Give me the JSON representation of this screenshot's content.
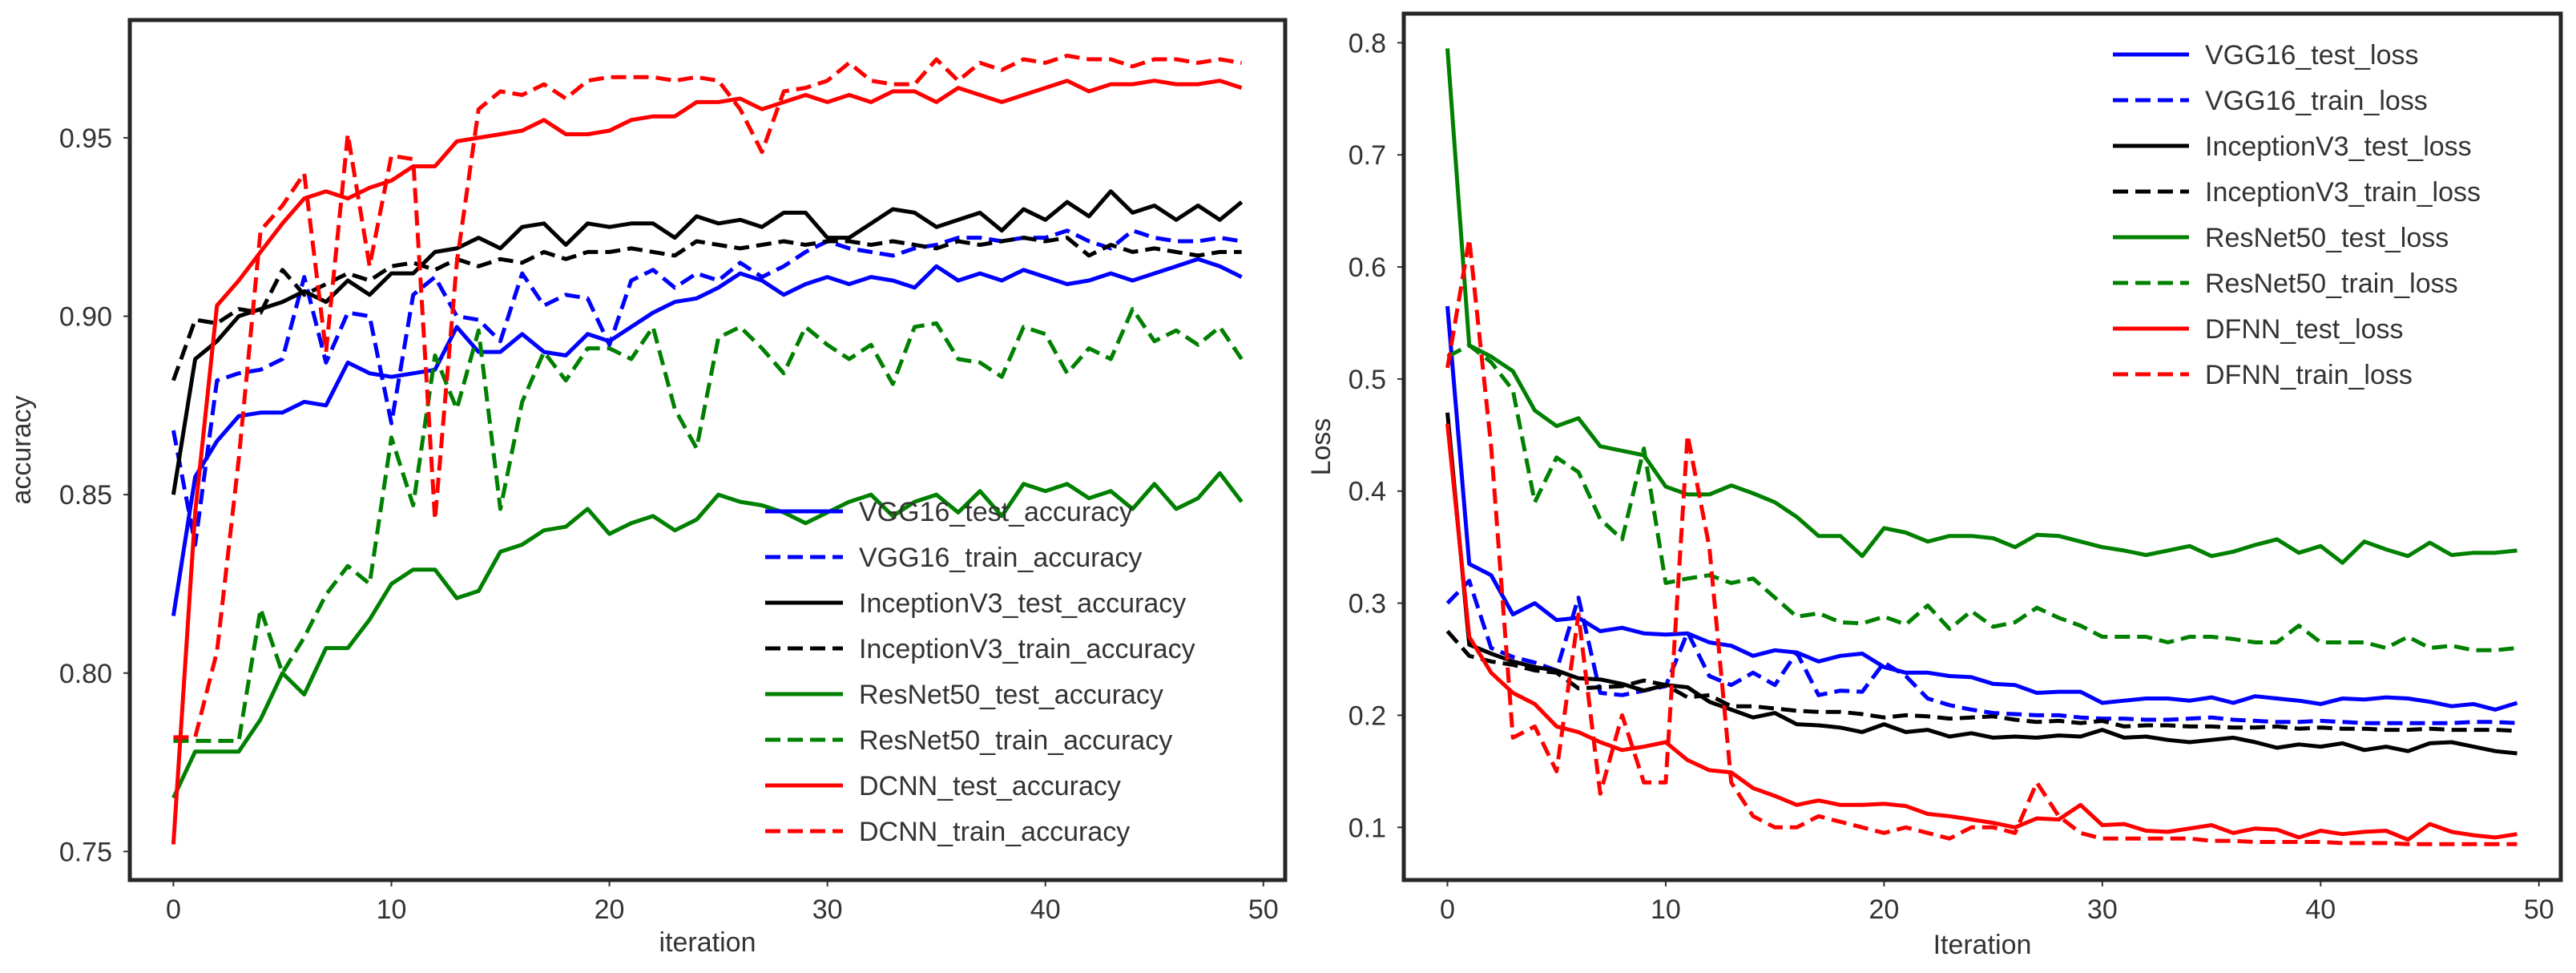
{
  "chart_data": [
    {
      "type": "line",
      "xlabel": "iteration",
      "ylabel": "accuracy",
      "xlim": [
        -2,
        51
      ],
      "ylim": [
        0.742,
        0.983
      ],
      "xticks": [
        0,
        10,
        20,
        30,
        40,
        50
      ],
      "yticks": [
        0.75,
        0.8,
        0.85,
        0.9,
        0.95
      ],
      "ytick_labels": [
        "0.75",
        "0.80",
        "0.85",
        "0.90",
        "0.95"
      ],
      "legend_position": "lower-right",
      "series": [
        {
          "name": "VGG16_test_accuracy",
          "color": "#0000ff",
          "style": "solid",
          "values": [
            0.816,
            0.855,
            0.865,
            0.872,
            0.873,
            0.873,
            0.876,
            0.875,
            0.887,
            0.884,
            0.883,
            0.884,
            0.885,
            0.897,
            0.89,
            0.89,
            0.895,
            0.89,
            0.889,
            0.895,
            0.893,
            0.897,
            0.901,
            0.904,
            0.905,
            0.908,
            0.912,
            0.91,
            0.906,
            0.909,
            0.911,
            0.909,
            0.911,
            0.91,
            0.908,
            0.914,
            0.91,
            0.912,
            0.91,
            0.913,
            0.911,
            0.909,
            0.91,
            0.912,
            0.91,
            0.912,
            0.914,
            0.916,
            0.914,
            0.911
          ]
        },
        {
          "name": "VGG16_train_accuracy",
          "color": "#0000ff",
          "style": "dashed",
          "values": [
            0.868,
            0.836,
            0.882,
            0.884,
            0.885,
            0.888,
            0.911,
            0.887,
            0.901,
            0.9,
            0.87,
            0.906,
            0.911,
            0.9,
            0.899,
            0.893,
            0.912,
            0.903,
            0.906,
            0.905,
            0.892,
            0.91,
            0.913,
            0.908,
            0.912,
            0.91,
            0.915,
            0.911,
            0.914,
            0.918,
            0.921,
            0.919,
            0.918,
            0.917,
            0.919,
            0.92,
            0.922,
            0.922,
            0.921,
            0.922,
            0.922,
            0.924,
            0.921,
            0.919,
            0.924,
            0.922,
            0.921,
            0.921,
            0.922,
            0.921
          ]
        },
        {
          "name": "InceptionV3_test_accuracy",
          "color": "#000000",
          "style": "solid",
          "values": [
            0.85,
            0.888,
            0.893,
            0.9,
            0.902,
            0.904,
            0.907,
            0.904,
            0.91,
            0.906,
            0.912,
            0.912,
            0.918,
            0.919,
            0.922,
            0.919,
            0.925,
            0.926,
            0.92,
            0.926,
            0.925,
            0.926,
            0.926,
            0.922,
            0.928,
            0.926,
            0.927,
            0.925,
            0.929,
            0.929,
            0.922,
            0.922,
            0.926,
            0.93,
            0.929,
            0.925,
            0.927,
            0.929,
            0.924,
            0.93,
            0.927,
            0.932,
            0.928,
            0.935,
            0.929,
            0.931,
            0.927,
            0.931,
            0.927,
            0.932
          ]
        },
        {
          "name": "InceptionV3_train_accuracy",
          "color": "#000000",
          "style": "dashed",
          "values": [
            0.882,
            0.899,
            0.898,
            0.902,
            0.901,
            0.913,
            0.906,
            0.909,
            0.912,
            0.91,
            0.914,
            0.915,
            0.913,
            0.916,
            0.914,
            0.916,
            0.915,
            0.918,
            0.916,
            0.918,
            0.918,
            0.919,
            0.918,
            0.917,
            0.921,
            0.92,
            0.919,
            0.92,
            0.921,
            0.92,
            0.921,
            0.921,
            0.92,
            0.921,
            0.92,
            0.919,
            0.921,
            0.92,
            0.921,
            0.922,
            0.921,
            0.922,
            0.917,
            0.92,
            0.918,
            0.919,
            0.918,
            0.917,
            0.918,
            0.918
          ]
        },
        {
          "name": "ResNet50_test_accuracy",
          "color": "#008000",
          "style": "solid",
          "values": [
            0.765,
            0.778,
            0.778,
            0.778,
            0.787,
            0.8,
            0.794,
            0.807,
            0.807,
            0.815,
            0.825,
            0.829,
            0.829,
            0.821,
            0.823,
            0.834,
            0.836,
            0.84,
            0.841,
            0.846,
            0.839,
            0.842,
            0.844,
            0.84,
            0.843,
            0.85,
            0.848,
            0.847,
            0.845,
            0.842,
            0.845,
            0.848,
            0.85,
            0.844,
            0.848,
            0.85,
            0.845,
            0.851,
            0.844,
            0.853,
            0.851,
            0.853,
            0.849,
            0.851,
            0.846,
            0.853,
            0.846,
            0.849,
            0.856,
            0.848
          ]
        },
        {
          "name": "ResNet50_train_accuracy",
          "color": "#008000",
          "style": "dashed",
          "values": [
            0.781,
            0.781,
            0.781,
            0.781,
            0.818,
            0.8,
            0.81,
            0.822,
            0.83,
            0.825,
            0.866,
            0.847,
            0.889,
            0.874,
            0.896,
            0.846,
            0.876,
            0.89,
            0.882,
            0.891,
            0.891,
            0.888,
            0.897,
            0.874,
            0.863,
            0.894,
            0.897,
            0.891,
            0.884,
            0.897,
            0.892,
            0.888,
            0.892,
            0.881,
            0.897,
            0.898,
            0.888,
            0.887,
            0.883,
            0.897,
            0.895,
            0.884,
            0.891,
            0.888,
            0.902,
            0.893,
            0.896,
            0.892,
            0.897,
            0.888
          ]
        },
        {
          "name": "DCNN_test_accuracy",
          "color": "#ff0000",
          "style": "solid",
          "values": [
            0.752,
            0.845,
            0.903,
            0.91,
            0.918,
            0.926,
            0.933,
            0.935,
            0.933,
            0.936,
            0.938,
            0.942,
            0.942,
            0.949,
            0.95,
            0.951,
            0.952,
            0.955,
            0.951,
            0.951,
            0.952,
            0.955,
            0.956,
            0.956,
            0.96,
            0.96,
            0.961,
            0.958,
            0.96,
            0.962,
            0.96,
            0.962,
            0.96,
            0.963,
            0.963,
            0.96,
            0.964,
            0.962,
            0.96,
            0.962,
            0.964,
            0.966,
            0.963,
            0.965,
            0.965,
            0.966,
            0.965,
            0.965,
            0.966,
            0.964
          ]
        },
        {
          "name": "DCNN_train_accuracy",
          "color": "#ff0000",
          "style": "dashed",
          "values": [
            0.782,
            0.782,
            0.806,
            0.86,
            0.924,
            0.931,
            0.94,
            0.89,
            0.951,
            0.914,
            0.945,
            0.944,
            0.843,
            0.915,
            0.958,
            0.963,
            0.962,
            0.965,
            0.961,
            0.966,
            0.967,
            0.967,
            0.967,
            0.966,
            0.967,
            0.966,
            0.958,
            0.946,
            0.963,
            0.964,
            0.966,
            0.971,
            0.966,
            0.965,
            0.965,
            0.972,
            0.966,
            0.971,
            0.969,
            0.972,
            0.971,
            0.973,
            0.972,
            0.972,
            0.97,
            0.972,
            0.972,
            0.971,
            0.972,
            0.971
          ]
        }
      ]
    },
    {
      "type": "line",
      "xlabel": "Iteration",
      "ylabel": "Loss",
      "xlim": [
        -2,
        51
      ],
      "ylim": [
        0.053,
        0.826
      ],
      "xticks": [
        0,
        10,
        20,
        30,
        40,
        50
      ],
      "yticks": [
        0.1,
        0.2,
        0.3,
        0.4,
        0.5,
        0.6,
        0.7,
        0.8
      ],
      "ytick_labels": [
        "0.1",
        "0.2",
        "0.3",
        "0.4",
        "0.5",
        "0.6",
        "0.7",
        "0.8"
      ],
      "legend_position": "upper-right",
      "series": [
        {
          "name": "VGG16_test_loss",
          "color": "#0000ff",
          "style": "solid",
          "values": [
            0.565,
            0.335,
            0.325,
            0.29,
            0.3,
            0.285,
            0.287,
            0.275,
            0.278,
            0.273,
            0.272,
            0.273,
            0.265,
            0.262,
            0.253,
            0.258,
            0.256,
            0.248,
            0.253,
            0.255,
            0.243,
            0.238,
            0.238,
            0.235,
            0.234,
            0.228,
            0.227,
            0.22,
            0.221,
            0.221,
            0.211,
            0.213,
            0.215,
            0.215,
            0.213,
            0.216,
            0.211,
            0.217,
            0.215,
            0.213,
            0.21,
            0.215,
            0.214,
            0.216,
            0.215,
            0.212,
            0.208,
            0.21,
            0.205,
            0.211
          ]
        },
        {
          "name": "VGG16_train_loss",
          "color": "#0000ff",
          "style": "dashed",
          "values": [
            0.3,
            0.32,
            0.26,
            0.252,
            0.247,
            0.24,
            0.305,
            0.22,
            0.218,
            0.222,
            0.226,
            0.274,
            0.235,
            0.227,
            0.238,
            0.227,
            0.256,
            0.218,
            0.222,
            0.221,
            0.247,
            0.235,
            0.215,
            0.209,
            0.205,
            0.202,
            0.201,
            0.2,
            0.2,
            0.198,
            0.197,
            0.197,
            0.196,
            0.196,
            0.197,
            0.198,
            0.196,
            0.195,
            0.194,
            0.194,
            0.195,
            0.194,
            0.193,
            0.193,
            0.193,
            0.193,
            0.193,
            0.194,
            0.194,
            0.193
          ]
        },
        {
          "name": "InceptionV3_test_loss",
          "color": "#000000",
          "style": "solid",
          "values": [
            0.47,
            0.263,
            0.255,
            0.248,
            0.243,
            0.24,
            0.233,
            0.232,
            0.228,
            0.222,
            0.227,
            0.225,
            0.212,
            0.205,
            0.198,
            0.202,
            0.192,
            0.191,
            0.189,
            0.185,
            0.192,
            0.185,
            0.187,
            0.181,
            0.184,
            0.18,
            0.181,
            0.18,
            0.182,
            0.181,
            0.187,
            0.18,
            0.181,
            0.178,
            0.176,
            0.178,
            0.18,
            0.176,
            0.171,
            0.174,
            0.172,
            0.175,
            0.169,
            0.172,
            0.168,
            0.175,
            0.176,
            0.172,
            0.168,
            0.166
          ]
        },
        {
          "name": "InceptionV3_train_loss",
          "color": "#000000",
          "style": "dashed",
          "values": [
            0.275,
            0.253,
            0.248,
            0.245,
            0.24,
            0.238,
            0.224,
            0.225,
            0.226,
            0.231,
            0.227,
            0.216,
            0.218,
            0.208,
            0.208,
            0.206,
            0.204,
            0.203,
            0.203,
            0.201,
            0.198,
            0.2,
            0.199,
            0.197,
            0.198,
            0.199,
            0.196,
            0.194,
            0.195,
            0.193,
            0.195,
            0.19,
            0.191,
            0.191,
            0.19,
            0.19,
            0.189,
            0.189,
            0.19,
            0.188,
            0.189,
            0.188,
            0.188,
            0.187,
            0.187,
            0.188,
            0.187,
            0.187,
            0.187,
            0.186
          ]
        },
        {
          "name": "ResNet50_test_loss",
          "color": "#008000",
          "style": "solid",
          "values": [
            0.795,
            0.53,
            0.52,
            0.507,
            0.472,
            0.458,
            0.465,
            0.44,
            0.436,
            0.432,
            0.404,
            0.397,
            0.397,
            0.405,
            0.398,
            0.39,
            0.377,
            0.36,
            0.36,
            0.342,
            0.367,
            0.363,
            0.355,
            0.36,
            0.36,
            0.358,
            0.35,
            0.361,
            0.36,
            0.355,
            0.35,
            0.347,
            0.343,
            0.347,
            0.351,
            0.342,
            0.346,
            0.352,
            0.357,
            0.345,
            0.351,
            0.336,
            0.355,
            0.348,
            0.342,
            0.354,
            0.343,
            0.345,
            0.345,
            0.347
          ]
        },
        {
          "name": "ResNet50_train_loss",
          "color": "#008000",
          "style": "dashed",
          "values": [
            0.52,
            0.53,
            0.515,
            0.49,
            0.39,
            0.43,
            0.417,
            0.375,
            0.357,
            0.438,
            0.318,
            0.322,
            0.325,
            0.318,
            0.322,
            0.305,
            0.288,
            0.291,
            0.283,
            0.282,
            0.288,
            0.281,
            0.298,
            0.277,
            0.293,
            0.279,
            0.283,
            0.296,
            0.287,
            0.28,
            0.27,
            0.27,
            0.27,
            0.265,
            0.27,
            0.27,
            0.268,
            0.265,
            0.265,
            0.28,
            0.265,
            0.265,
            0.265,
            0.26,
            0.27,
            0.26,
            0.262,
            0.258,
            0.258,
            0.26
          ]
        },
        {
          "name": "DFNN_test_loss",
          "color": "#ff0000",
          "style": "solid",
          "values": [
            0.46,
            0.27,
            0.238,
            0.22,
            0.21,
            0.19,
            0.185,
            0.176,
            0.169,
            0.172,
            0.176,
            0.16,
            0.151,
            0.149,
            0.135,
            0.128,
            0.12,
            0.124,
            0.12,
            0.12,
            0.121,
            0.119,
            0.112,
            0.11,
            0.107,
            0.104,
            0.1,
            0.108,
            0.107,
            0.12,
            0.102,
            0.103,
            0.097,
            0.096,
            0.099,
            0.102,
            0.095,
            0.099,
            0.098,
            0.091,
            0.097,
            0.094,
            0.096,
            0.097,
            0.089,
            0.103,
            0.096,
            0.093,
            0.091,
            0.094
          ]
        },
        {
          "name": "DFNN_train_loss",
          "color": "#ff0000",
          "style": "dashed",
          "values": [
            0.51,
            0.625,
            0.44,
            0.18,
            0.19,
            0.15,
            0.29,
            0.13,
            0.2,
            0.14,
            0.14,
            0.45,
            0.35,
            0.14,
            0.11,
            0.1,
            0.1,
            0.11,
            0.105,
            0.1,
            0.095,
            0.1,
            0.095,
            0.09,
            0.1,
            0.1,
            0.095,
            0.14,
            0.11,
            0.095,
            0.09,
            0.09,
            0.09,
            0.09,
            0.09,
            0.088,
            0.088,
            0.087,
            0.087,
            0.087,
            0.087,
            0.086,
            0.086,
            0.086,
            0.085,
            0.085,
            0.085,
            0.085,
            0.085,
            0.085
          ]
        }
      ]
    }
  ]
}
